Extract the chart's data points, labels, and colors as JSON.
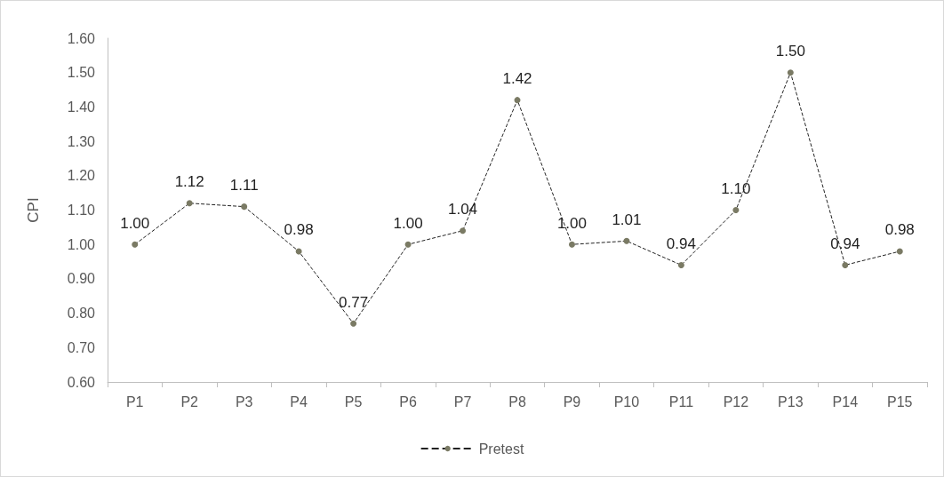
{
  "chart_data": {
    "type": "line",
    "ylabel": "CPI",
    "categories": [
      "P1",
      "P2",
      "P3",
      "P4",
      "P5",
      "P6",
      "P7",
      "P8",
      "P9",
      "P10",
      "P11",
      "P12",
      "P13",
      "P14",
      "P15"
    ],
    "series": [
      {
        "name": "Pretest",
        "color": "#7a7a64",
        "values": [
          1.0,
          1.12,
          1.11,
          0.98,
          0.77,
          1.0,
          1.04,
          1.42,
          1.0,
          1.01,
          0.94,
          1.1,
          1.5,
          0.94,
          0.98
        ],
        "value_labels": [
          "1.00",
          "1.12",
          "1.11",
          "0.98",
          "0.77",
          "1.00",
          "1.04",
          "1.42",
          "1.00",
          "1.01",
          "0.94",
          "1.10",
          "1.50",
          "0.94",
          "0.98"
        ]
      }
    ],
    "ylim": [
      0.6,
      1.6
    ],
    "yticks": [
      {
        "value": 0.6,
        "label": "0.60"
      },
      {
        "value": 0.7,
        "label": "0.70"
      },
      {
        "value": 0.8,
        "label": "0.80"
      },
      {
        "value": 0.9,
        "label": "0.90"
      },
      {
        "value": 1.0,
        "label": "1.00"
      },
      {
        "value": 1.1,
        "label": "1.10"
      },
      {
        "value": 1.2,
        "label": "1.20"
      },
      {
        "value": 1.3,
        "label": "1.30"
      },
      {
        "value": 1.4,
        "label": "1.40"
      },
      {
        "value": 1.5,
        "label": "1.50"
      },
      {
        "value": 1.6,
        "label": "1.60"
      }
    ],
    "grid": false,
    "legend": "bottom",
    "marker": "circle",
    "line_style": "dashed"
  }
}
